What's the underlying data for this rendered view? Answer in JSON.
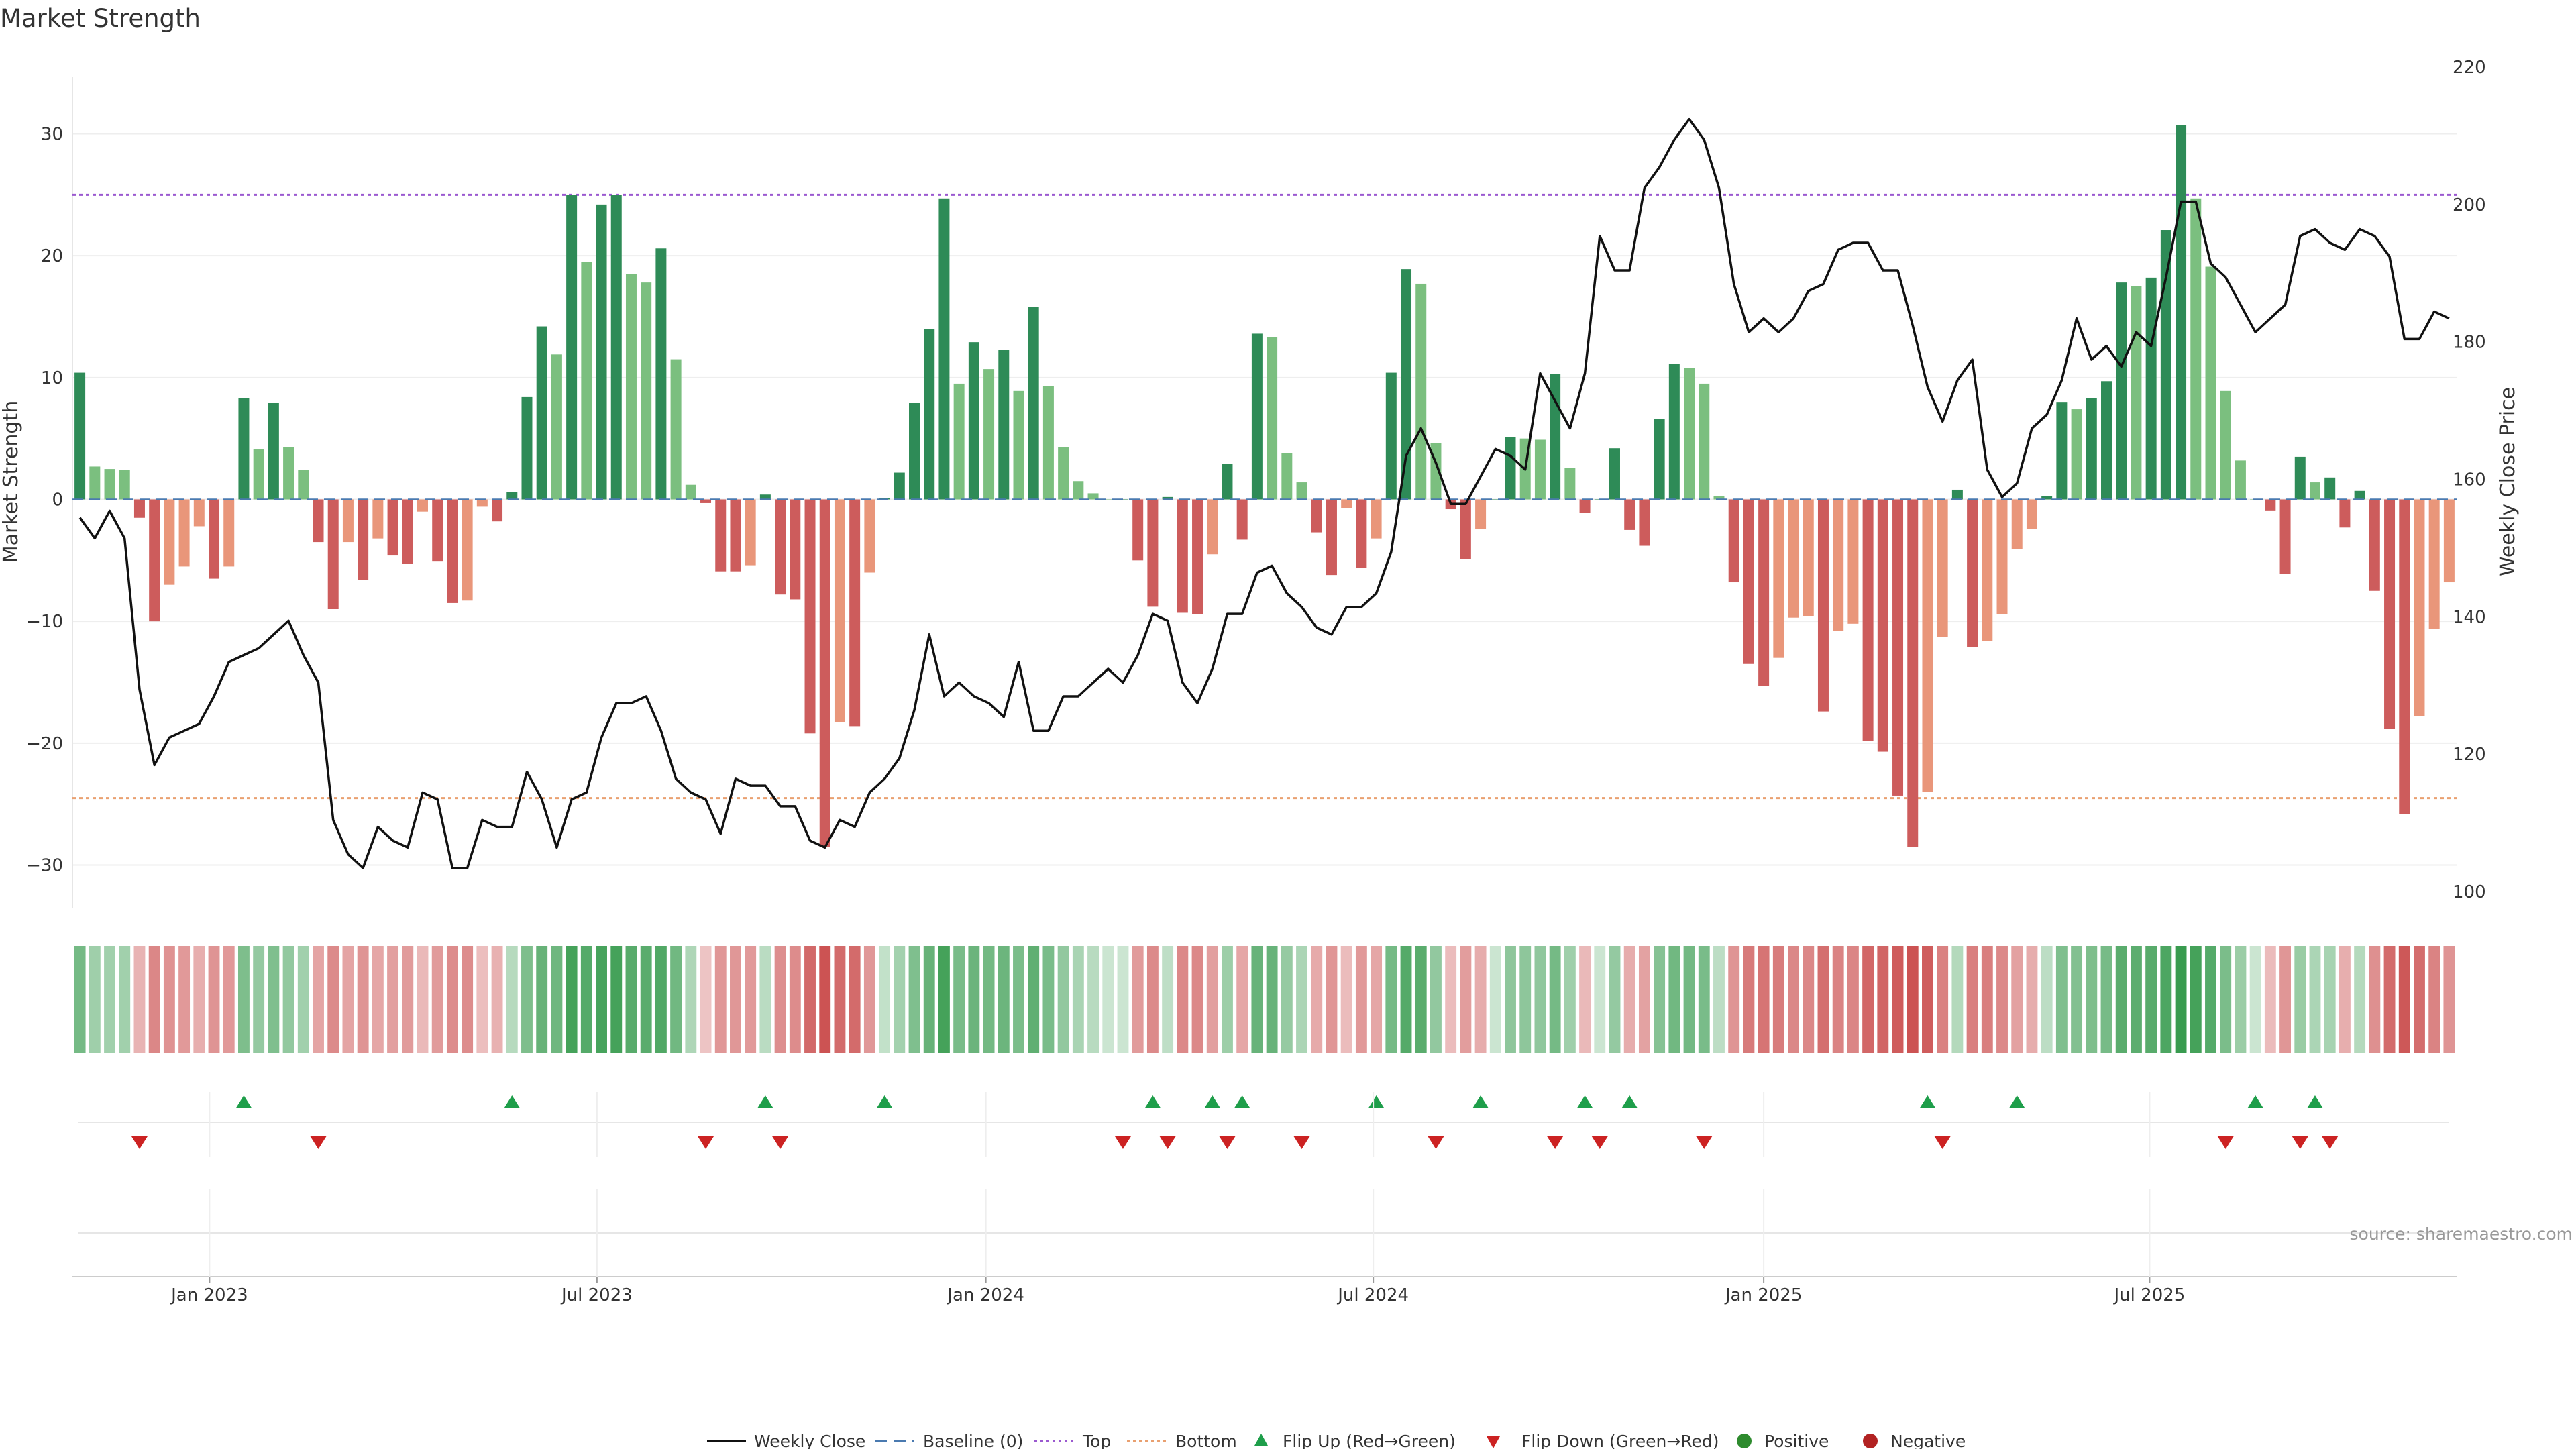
{
  "title": "Market Strength",
  "source": "source: sharemaestro.com",
  "colors": {
    "pos_dark": "#2e8b57",
    "pos_light": "#7bbf7f",
    "neg_dark": "#cd5c5c",
    "neg_light": "#e9967a",
    "price_line": "#111111",
    "top_line": "#9b59d0",
    "bottom_line": "#e9a070",
    "baseline": "#4a7ab0",
    "flip_up": "#1e9e4a",
    "flip_down": "#cc2222",
    "positive_dot": "#2e8b2e",
    "negative_dot": "#b22222"
  },
  "chart_data": {
    "type": "bar",
    "title": "Market Strength",
    "ylabel": "Market Strength",
    "y2label": "Weekly Close Price",
    "ylim": [
      -33,
      33
    ],
    "y2lim": [
      100,
      220
    ],
    "yticks": [
      30,
      20,
      10,
      0,
      -10,
      -20,
      -30
    ],
    "ytick_labels": [
      "30",
      "20",
      "10",
      "0",
      "−10",
      "−20",
      "−30"
    ],
    "y2ticks": [
      220,
      200,
      180,
      160,
      140,
      120,
      100
    ],
    "y2tick_labels": [
      "220",
      "200",
      "180",
      "160",
      "140",
      "120",
      "100"
    ],
    "top_level": 25,
    "bottom_level": -24.5,
    "xticks": [
      {
        "label": "Jan 2023",
        "index": 8.7
      },
      {
        "label": "Jul 2023",
        "index": 34.7
      },
      {
        "label": "Jan 2024",
        "index": 60.8
      },
      {
        "label": "Jul 2024",
        "index": 86.8
      },
      {
        "label": "Jan 2025",
        "index": 113.0
      },
      {
        "label": "Jul 2025",
        "index": 138.9
      }
    ],
    "strength": [
      10.4,
      2.7,
      2.5,
      2.4,
      -1.5,
      -10,
      -7,
      -5.5,
      -2.2,
      -6.5,
      -5.5,
      8.3,
      4.1,
      7.9,
      4.3,
      2.4,
      -3.5,
      -9,
      -3.5,
      -6.6,
      -3.2,
      -4.6,
      -5.3,
      -1,
      -5.1,
      -8.5,
      -8.3,
      -0.6,
      -1.8,
      0.6,
      8.4,
      14.2,
      11.9,
      25,
      19.5,
      24.2,
      25,
      18.5,
      17.8,
      20.6,
      11.5,
      1.2,
      -0.3,
      -5.9,
      -5.9,
      -5.4,
      0.4,
      -7.8,
      -8.2,
      -19.2,
      -28.5,
      -18.3,
      -18.6,
      -6,
      0.1,
      2.2,
      7.9,
      14,
      24.7,
      9.5,
      12.9,
      10.7,
      12.3,
      8.9,
      15.8,
      9.3,
      4.3,
      1.5,
      0.5,
      0,
      0,
      -5,
      -8.8,
      0.2,
      -9.3,
      -9.4,
      -4.5,
      2.9,
      -3.3,
      13.6,
      13.3,
      3.8,
      1.4,
      -2.7,
      -6.2,
      -0.7,
      -5.6,
      -3.2,
      10.4,
      18.9,
      17.7,
      4.6,
      -0.8,
      -4.9,
      -2.4,
      0,
      5.1,
      5,
      4.9,
      10.3,
      2.6,
      -1.1,
      0,
      4.2,
      -2.5,
      -3.8,
      6.6,
      11.1,
      10.8,
      9.5,
      0.3,
      -6.8,
      -13.5,
      -15.3,
      -13,
      -9.7,
      -9.6,
      -17.4,
      -10.8,
      -10.2,
      -19.8,
      -20.7,
      -24.3,
      -28.5,
      -24,
      -11.3,
      0.8,
      -12.1,
      -11.6,
      -9.4,
      -4.1,
      -2.4,
      0.3,
      8,
      7.4,
      8.3,
      9.7,
      17.8,
      17.5,
      18.2,
      22.1,
      30.7,
      24.7,
      19.1,
      8.9,
      3.2,
      0,
      -0.9,
      -6.1,
      3.5,
      1.4,
      1.8,
      -2.3,
      0.7,
      -7.5,
      -18.8,
      -25.8,
      -17.8,
      -10.6,
      -6.8
    ],
    "weekly_close": [
      155,
      152,
      156,
      152,
      130,
      119,
      123,
      124,
      125,
      129,
      134,
      135,
      136,
      138,
      140,
      135,
      131,
      111,
      106,
      104,
      110,
      108,
      107,
      115,
      114,
      104,
      104,
      111,
      110,
      110,
      118,
      114,
      107,
      114,
      115,
      123,
      128,
      128,
      129,
      124,
      117,
      115,
      114,
      109,
      117,
      116,
      116,
      113,
      113,
      108,
      107,
      111,
      110,
      115,
      117,
      120,
      127,
      138,
      129,
      131,
      129,
      128,
      126,
      134,
      124,
      124,
      129,
      129,
      131,
      133,
      131,
      135,
      141,
      140,
      131,
      128,
      133,
      141,
      141,
      147,
      148,
      144,
      142,
      139,
      138,
      142,
      142,
      144,
      150,
      164,
      168,
      163,
      157,
      157,
      161,
      165,
      164,
      162,
      176,
      172,
      168,
      176,
      196,
      191,
      191,
      203,
      206,
      210,
      213,
      210,
      203,
      189,
      182,
      184,
      182,
      184,
      188,
      189,
      194,
      195,
      195,
      191,
      191,
      183,
      174,
      169,
      175,
      178,
      162,
      158,
      160,
      168,
      170,
      175,
      184,
      178,
      180,
      177,
      182,
      180,
      190,
      201,
      201,
      192,
      190,
      186,
      182,
      184,
      186,
      196,
      197,
      195,
      194,
      197,
      196,
      193,
      181,
      181,
      185,
      184
    ],
    "flip_up_indices": [
      11,
      29,
      46,
      54,
      72,
      76,
      78,
      87,
      94,
      101,
      104,
      124,
      130,
      146,
      150
    ],
    "flip_down_indices": [
      4,
      16,
      42,
      47,
      70,
      73,
      77,
      82,
      91,
      99,
      102,
      109,
      125,
      144,
      149,
      151
    ]
  },
  "legend": {
    "weekly_close": "Weekly Close",
    "baseline": "Baseline (0)",
    "top": "Top",
    "bottom": "Bottom",
    "flip_up": "Flip Up (Red→Green)",
    "flip_down": "Flip Down (Green→Red)",
    "positive": "Positive",
    "negative": "Negative"
  }
}
